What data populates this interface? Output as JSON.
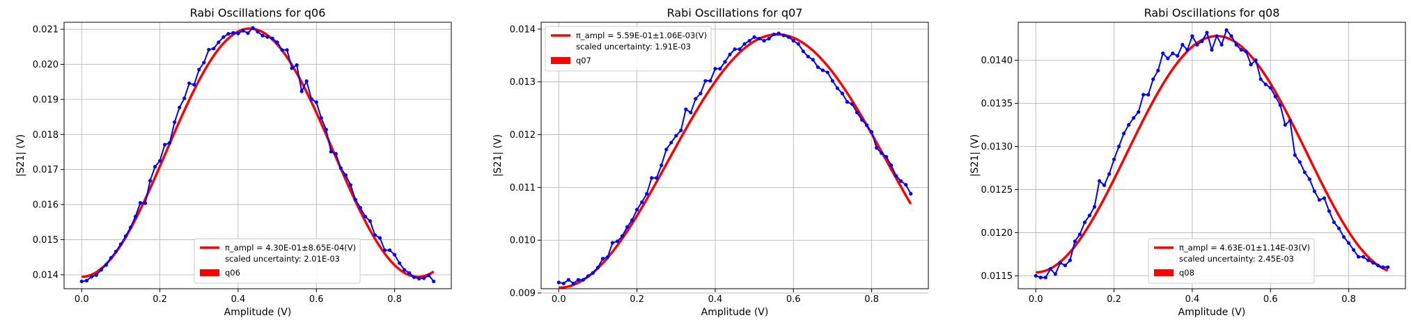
{
  "chart_data": [
    {
      "type": "line",
      "title": "Rabi Oscillations for q06",
      "xlabel": "Amplitude (V)",
      "ylabel": "|S21| (V)",
      "xlim": [
        -0.045,
        0.945
      ],
      "ylim": [
        0.0136,
        0.0212
      ],
      "xticks": [
        0.0,
        0.2,
        0.4,
        0.6,
        0.8
      ],
      "xtick_labels": [
        "0.0",
        "0.2",
        "0.4",
        "0.6",
        "0.8"
      ],
      "yticks": [
        0.014,
        0.015,
        0.016,
        0.017,
        0.018,
        0.019,
        0.02,
        0.021
      ],
      "ytick_labels": [
        "0.014",
        "0.015",
        "0.016",
        "0.017",
        "0.018",
        "0.019",
        "0.020",
        "0.021"
      ],
      "grid": true,
      "legend_position": "lower-center",
      "legend": [
        {
          "label": "π_ampl = 4.30E-01±8.65E-04(V)",
          "label2": "scaled uncertainty: 2.01E-03",
          "kind": "line",
          "color": "#ff0000"
        },
        {
          "label": "q06",
          "kind": "patch",
          "color": "#ff0000"
        }
      ],
      "series": [
        {
          "name": "data",
          "color": "#0000ff",
          "x": [
            0.0,
            0.0125,
            0.025,
            0.0375,
            0.05,
            0.0625,
            0.075,
            0.0875,
            0.1,
            0.1125,
            0.125,
            0.1375,
            0.15,
            0.1625,
            0.175,
            0.1875,
            0.2,
            0.2125,
            0.225,
            0.2375,
            0.25,
            0.2625,
            0.275,
            0.2875,
            0.3,
            0.3125,
            0.325,
            0.3375,
            0.35,
            0.3625,
            0.375,
            0.3875,
            0.4,
            0.4125,
            0.425,
            0.4375,
            0.45,
            0.4625,
            0.475,
            0.4875,
            0.5,
            0.5125,
            0.525,
            0.5375,
            0.55,
            0.5625,
            0.575,
            0.5875,
            0.6,
            0.6125,
            0.625,
            0.6375,
            0.65,
            0.6625,
            0.675,
            0.6875,
            0.7,
            0.7125,
            0.725,
            0.7375,
            0.75,
            0.7625,
            0.775,
            0.7875,
            0.8,
            0.8125,
            0.825,
            0.8375,
            0.85,
            0.8625,
            0.875,
            0.8875,
            0.9
          ],
          "y": [
            0.01381,
            0.01383,
            0.01394,
            0.01399,
            0.01414,
            0.01428,
            0.01448,
            0.01466,
            0.01487,
            0.0151,
            0.01535,
            0.01566,
            0.01605,
            0.01604,
            0.01668,
            0.01708,
            0.01725,
            0.01771,
            0.01776,
            0.01835,
            0.01877,
            0.01903,
            0.01946,
            0.01942,
            0.01985,
            0.02005,
            0.02042,
            0.02045,
            0.02063,
            0.02078,
            0.02087,
            0.0209,
            0.02088,
            0.02096,
            0.02089,
            0.02104,
            0.02093,
            0.02082,
            0.02078,
            0.02074,
            0.02063,
            0.02041,
            0.02041,
            0.01989,
            0.01998,
            0.01923,
            0.01952,
            0.01901,
            0.01892,
            0.01847,
            0.01814,
            0.01751,
            0.01745,
            0.01704,
            0.01684,
            0.01656,
            0.01614,
            0.01591,
            0.01566,
            0.01553,
            0.01513,
            0.01505,
            0.0147,
            0.0147,
            0.01457,
            0.01433,
            0.01414,
            0.01405,
            0.01393,
            0.01389,
            0.0139,
            0.01398,
            0.01381
          ]
        },
        {
          "name": "fit",
          "color": "#ff0000",
          "kind": "cosine",
          "params": {
            "offset": 0.01748,
            "amplitude": -0.00354,
            "period": 0.86,
            "phase": 0.0
          }
        }
      ]
    },
    {
      "type": "line",
      "title": "Rabi Oscillations for q07",
      "xlabel": "Amplitude (V)",
      "ylabel": "|S21| (V)",
      "xlim": [
        -0.045,
        0.945
      ],
      "ylim": [
        0.00908,
        0.01413
      ],
      "xticks": [
        0.0,
        0.2,
        0.4,
        0.6,
        0.8
      ],
      "xtick_labels": [
        "0.0",
        "0.2",
        "0.4",
        "0.6",
        "0.8"
      ],
      "yticks": [
        0.009,
        0.01,
        0.011,
        0.012,
        0.013,
        0.014
      ],
      "ytick_labels": [
        "0.009",
        "0.010",
        "0.011",
        "0.012",
        "0.013",
        "0.014"
      ],
      "grid": true,
      "legend_position": "upper-left",
      "legend": [
        {
          "label": "π_ampl = 5.59E-01±1.06E-03(V)",
          "label2": "scaled uncertainty: 1.91E-03",
          "kind": "line",
          "color": "#ff0000"
        },
        {
          "label": "q07",
          "kind": "patch",
          "color": "#ff0000"
        }
      ],
      "series": [
        {
          "name": "data",
          "color": "#0000ff",
          "x": [
            0.0,
            0.0125,
            0.025,
            0.0375,
            0.05,
            0.0625,
            0.075,
            0.0875,
            0.1,
            0.1125,
            0.125,
            0.1375,
            0.15,
            0.1625,
            0.175,
            0.1875,
            0.2,
            0.2125,
            0.225,
            0.2375,
            0.25,
            0.2625,
            0.275,
            0.2875,
            0.3,
            0.3125,
            0.325,
            0.3375,
            0.35,
            0.3625,
            0.375,
            0.3875,
            0.4,
            0.4125,
            0.425,
            0.4375,
            0.45,
            0.4625,
            0.475,
            0.4875,
            0.5,
            0.5125,
            0.525,
            0.5375,
            0.55,
            0.5625,
            0.575,
            0.5875,
            0.6,
            0.6125,
            0.625,
            0.6375,
            0.65,
            0.6625,
            0.675,
            0.6875,
            0.7,
            0.7125,
            0.725,
            0.7375,
            0.75,
            0.7625,
            0.775,
            0.7875,
            0.8,
            0.8125,
            0.825,
            0.8375,
            0.85,
            0.8625,
            0.875,
            0.8875,
            0.9
          ],
          "y": [
            0.0092,
            0.00918,
            0.00925,
            0.00918,
            0.00925,
            0.00925,
            0.00932,
            0.00938,
            0.00948,
            0.00965,
            0.00968,
            0.00995,
            0.00998,
            0.01008,
            0.01025,
            0.01038,
            0.01058,
            0.01072,
            0.01088,
            0.01118,
            0.01118,
            0.01142,
            0.01172,
            0.01185,
            0.01198,
            0.01208,
            0.01248,
            0.01242,
            0.01268,
            0.01278,
            0.01302,
            0.01302,
            0.01325,
            0.01325,
            0.01338,
            0.01352,
            0.01362,
            0.01362,
            0.01372,
            0.01378,
            0.01385,
            0.01382,
            0.01378,
            0.01382,
            0.0139,
            0.01392,
            0.01388,
            0.01385,
            0.01378,
            0.01372,
            0.01358,
            0.01348,
            0.01342,
            0.01328,
            0.01322,
            0.01318,
            0.01302,
            0.01288,
            0.01278,
            0.01262,
            0.01258,
            0.01242,
            0.01228,
            0.01218,
            0.01205,
            0.01175,
            0.01165,
            0.01158,
            0.01142,
            0.01122,
            0.01112,
            0.01105,
            0.01088
          ]
        },
        {
          "name": "fit",
          "color": "#ff0000",
          "kind": "cosine",
          "params": {
            "offset": 0.0115,
            "amplitude": -0.0024,
            "period": 1.118,
            "phase": 0.0
          }
        }
      ]
    },
    {
      "type": "line",
      "title": "Rabi Oscillations for q08",
      "xlabel": "Amplitude (V)",
      "ylabel": "|S21| (V)",
      "xlim": [
        -0.045,
        0.945
      ],
      "ylim": [
        0.01135,
        0.01444
      ],
      "xticks": [
        0.0,
        0.2,
        0.4,
        0.6,
        0.8
      ],
      "xtick_labels": [
        "0.0",
        "0.2",
        "0.4",
        "0.6",
        "0.8"
      ],
      "yticks": [
        0.0115,
        0.012,
        0.0125,
        0.013,
        0.0135,
        0.014
      ],
      "ytick_labels": [
        "0.0115",
        "0.0120",
        "0.0125",
        "0.0130",
        "0.0135",
        "0.0140"
      ],
      "grid": true,
      "legend_position": "lower-center",
      "legend": [
        {
          "label": "π_ampl = 4.63E-01±1.14E-03(V)",
          "label2": "scaled uncertainty: 2.45E-03",
          "kind": "line",
          "color": "#ff0000"
        },
        {
          "label": "q08",
          "kind": "patch",
          "color": "#ff0000"
        }
      ],
      "series": [
        {
          "name": "data",
          "color": "#0000ff",
          "x": [
            0.0,
            0.0125,
            0.025,
            0.0375,
            0.05,
            0.0625,
            0.075,
            0.0875,
            0.1,
            0.1125,
            0.125,
            0.1375,
            0.15,
            0.1625,
            0.175,
            0.1875,
            0.2,
            0.2125,
            0.225,
            0.2375,
            0.25,
            0.2625,
            0.275,
            0.2875,
            0.3,
            0.3125,
            0.325,
            0.3375,
            0.35,
            0.3625,
            0.375,
            0.3875,
            0.4,
            0.4125,
            0.425,
            0.4375,
            0.45,
            0.4625,
            0.475,
            0.4875,
            0.5,
            0.5125,
            0.525,
            0.5375,
            0.55,
            0.5625,
            0.575,
            0.5875,
            0.6,
            0.6125,
            0.625,
            0.6375,
            0.65,
            0.6625,
            0.675,
            0.6875,
            0.7,
            0.7125,
            0.725,
            0.7375,
            0.75,
            0.7625,
            0.775,
            0.7875,
            0.8,
            0.8125,
            0.825,
            0.8375,
            0.85,
            0.8625,
            0.875,
            0.8875,
            0.9
          ],
          "y": [
            0.0115,
            0.01148,
            0.01148,
            0.01158,
            0.01152,
            0.01165,
            0.01162,
            0.01168,
            0.0119,
            0.01198,
            0.01212,
            0.0122,
            0.0123,
            0.0126,
            0.01255,
            0.01268,
            0.01285,
            0.013,
            0.01315,
            0.01325,
            0.01333,
            0.0134,
            0.0136,
            0.0136,
            0.01378,
            0.01388,
            0.01408,
            0.01402,
            0.01408,
            0.01405,
            0.01418,
            0.01412,
            0.01428,
            0.01418,
            0.01422,
            0.01432,
            0.01412,
            0.01428,
            0.01418,
            0.01435,
            0.01428,
            0.01418,
            0.01412,
            0.0141,
            0.01395,
            0.014,
            0.01378,
            0.01372,
            0.01368,
            0.01358,
            0.01348,
            0.01325,
            0.0133,
            0.0129,
            0.01282,
            0.0127,
            0.01262,
            0.01248,
            0.01238,
            0.0124,
            0.01225,
            0.01212,
            0.01205,
            0.01195,
            0.01188,
            0.0118,
            0.01172,
            0.01172,
            0.01168,
            0.01165,
            0.01162,
            0.0116,
            0.0116
          ]
        },
        {
          "name": "fit",
          "color": "#ff0000",
          "kind": "cosine",
          "params": {
            "offset": 0.01291,
            "amplitude": -0.00137,
            "period": 0.926,
            "phase": 0.0
          }
        }
      ]
    }
  ]
}
